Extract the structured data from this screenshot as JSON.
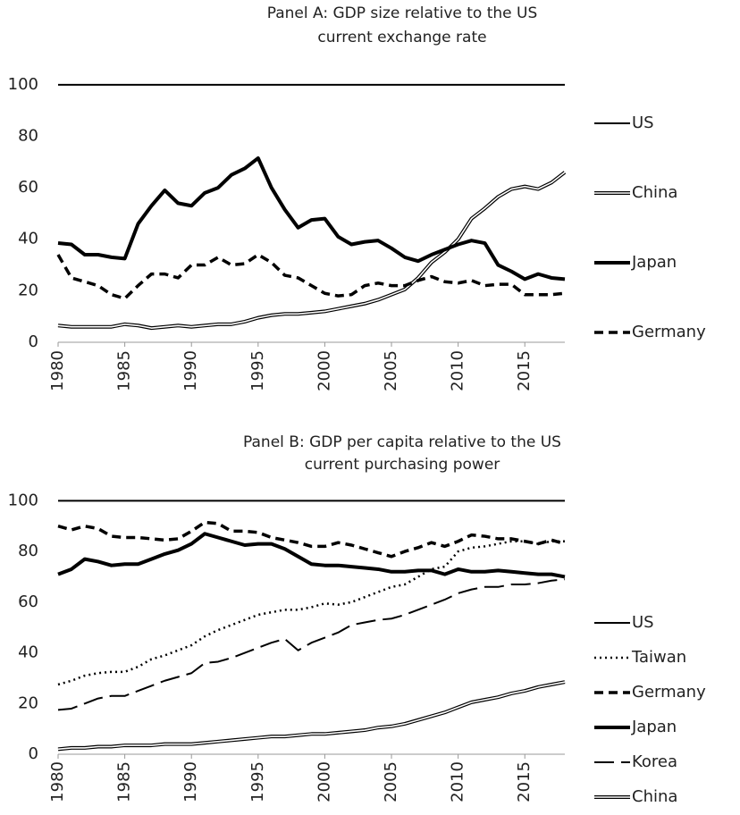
{
  "chart_data": [
    {
      "type": "line",
      "title": "Panel A: GDP size relative to the US",
      "subtitle": "current exchange rate",
      "x": [
        1980,
        1981,
        1982,
        1983,
        1984,
        1985,
        1986,
        1987,
        1988,
        1989,
        1990,
        1991,
        1992,
        1993,
        1994,
        1995,
        1996,
        1997,
        1998,
        1999,
        2000,
        2001,
        2002,
        2003,
        2004,
        2005,
        2006,
        2007,
        2008,
        2009,
        2010,
        2011,
        2012,
        2013,
        2014,
        2015,
        2016,
        2017,
        2018
      ],
      "xlim": [
        1980,
        2018
      ],
      "xticks": [
        1980,
        1985,
        1990,
        1995,
        2000,
        2005,
        2010,
        2015
      ],
      "ylim": [
        0,
        110
      ],
      "yticks": [
        0,
        20,
        40,
        60,
        80,
        100
      ],
      "grid": false,
      "legend": "right",
      "series": [
        {
          "name": "US",
          "color": "#000000",
          "style": "solid",
          "values": [
            100,
            100,
            100,
            100,
            100,
            100,
            100,
            100,
            100,
            100,
            100,
            100,
            100,
            100,
            100,
            100,
            100,
            100,
            100,
            100,
            100,
            100,
            100,
            100,
            100,
            100,
            100,
            100,
            100,
            100,
            100,
            100,
            100,
            100,
            100,
            100,
            100,
            100,
            100
          ]
        },
        {
          "name": "China",
          "color": "#000000",
          "style": "double",
          "values": [
            6.5,
            6,
            6,
            6,
            6,
            7,
            6.5,
            5.5,
            6,
            6.5,
            6,
            6.5,
            7,
            7,
            8,
            9.5,
            10.5,
            11,
            11,
            11.5,
            12,
            13,
            14,
            15,
            16.5,
            18.5,
            20.5,
            25,
            31,
            35,
            40,
            48,
            52,
            56.5,
            59.5,
            60.5,
            59.5,
            62,
            66
          ]
        },
        {
          "name": "Japan",
          "color": "#000000",
          "style": "thick",
          "values": [
            38.5,
            38,
            34,
            34,
            33,
            32.5,
            46,
            53,
            59,
            54,
            53,
            58,
            60,
            65,
            67.5,
            71.5,
            60,
            51.5,
            44.5,
            47.5,
            48,
            41,
            38,
            39,
            39.5,
            36.5,
            33,
            31.5,
            34,
            36,
            38,
            39.5,
            38.5,
            30,
            27.5,
            24.5,
            26.5,
            25,
            24.5
          ]
        },
        {
          "name": "Germany",
          "color": "#000000",
          "style": "dashed",
          "values": [
            34,
            25,
            23.5,
            22,
            18.5,
            17,
            22,
            26.5,
            26.5,
            25,
            30,
            30,
            33,
            30,
            30.5,
            34,
            31,
            26,
            25,
            22,
            19,
            18,
            18.5,
            22,
            23,
            22,
            22,
            24,
            25.5,
            23.5,
            23,
            24,
            22,
            22.5,
            22.5,
            18.5,
            18.5,
            18.5,
            19
          ]
        }
      ]
    },
    {
      "type": "line",
      "title": "Panel B: GDP per capita relative to the US",
      "subtitle": "current purchasing power",
      "x": [
        1980,
        1981,
        1982,
        1983,
        1984,
        1985,
        1986,
        1987,
        1988,
        1989,
        1990,
        1991,
        1992,
        1993,
        1994,
        1995,
        1996,
        1997,
        1998,
        1999,
        2000,
        2001,
        2002,
        2003,
        2004,
        2005,
        2006,
        2007,
        2008,
        2009,
        2010,
        2011,
        2012,
        2013,
        2014,
        2015,
        2016,
        2017,
        2018
      ],
      "xlim": [
        1980,
        2018
      ],
      "xticks": [
        1980,
        1985,
        1990,
        1995,
        2000,
        2005,
        2010,
        2015
      ],
      "ylim": [
        0,
        110
      ],
      "yticks": [
        0,
        20,
        40,
        60,
        80,
        100
      ],
      "grid": false,
      "legend": "right",
      "series": [
        {
          "name": "US",
          "color": "#000000",
          "style": "solid",
          "values": [
            100,
            100,
            100,
            100,
            100,
            100,
            100,
            100,
            100,
            100,
            100,
            100,
            100,
            100,
            100,
            100,
            100,
            100,
            100,
            100,
            100,
            100,
            100,
            100,
            100,
            100,
            100,
            100,
            100,
            100,
            100,
            100,
            100,
            100,
            100,
            100,
            100,
            100,
            100
          ]
        },
        {
          "name": "Taiwan",
          "color": "#000000",
          "style": "dotted",
          "values": [
            27.5,
            29,
            31,
            32,
            32.5,
            32.5,
            34.5,
            37.5,
            39,
            41,
            43,
            46.5,
            49,
            51,
            53,
            55,
            56,
            57,
            57,
            58,
            59.5,
            59,
            60,
            62,
            64,
            66,
            67,
            70,
            73,
            74,
            80,
            81.5,
            82,
            83,
            84,
            84,
            83,
            84,
            84
          ]
        },
        {
          "name": "Germany",
          "color": "#000000",
          "style": "dashed",
          "values": [
            90,
            88.5,
            90,
            89,
            86,
            85.5,
            85.5,
            85,
            84.5,
            85,
            88,
            91.5,
            91,
            88,
            88,
            87.5,
            85.5,
            84.5,
            83.5,
            82,
            82,
            83.5,
            82.5,
            81,
            79.5,
            78,
            80,
            81.5,
            83.5,
            82,
            84,
            86.5,
            86,
            85,
            85,
            84,
            83,
            84.5,
            83
          ]
        },
        {
          "name": "Japan",
          "color": "#000000",
          "style": "thick",
          "values": [
            71,
            73,
            77,
            76,
            74.5,
            75,
            75,
            77,
            79,
            80.5,
            83,
            87,
            85.5,
            84,
            82.5,
            83,
            83,
            81,
            78,
            75,
            74.5,
            74.5,
            74,
            73.5,
            73,
            72,
            72,
            72.5,
            72.5,
            71,
            73,
            72,
            72,
            72.5,
            72,
            71.5,
            71,
            71,
            70
          ]
        },
        {
          "name": "Korea",
          "color": "#000000",
          "style": "longdash",
          "values": [
            17.5,
            18,
            20,
            22,
            23,
            23,
            25,
            27,
            29,
            30.5,
            32,
            36,
            36.5,
            38,
            40,
            42,
            44,
            45.5,
            41,
            44,
            46,
            48,
            51,
            52,
            53,
            53.5,
            55,
            57,
            59,
            61,
            63.5,
            65,
            66,
            66,
            67,
            67,
            67.5,
            68.5,
            69
          ]
        },
        {
          "name": "China",
          "color": "#000000",
          "style": "double",
          "values": [
            2,
            2.5,
            2.5,
            3,
            3,
            3.5,
            3.5,
            3.5,
            4,
            4,
            4,
            4.5,
            5,
            5.5,
            6,
            6.5,
            7,
            7,
            7.5,
            8,
            8,
            8.5,
            9,
            9.5,
            10.5,
            11,
            12,
            13.5,
            15,
            16.5,
            18.5,
            20.5,
            21.5,
            22.5,
            24,
            25,
            26.5,
            27.5,
            28.5
          ]
        }
      ]
    }
  ]
}
